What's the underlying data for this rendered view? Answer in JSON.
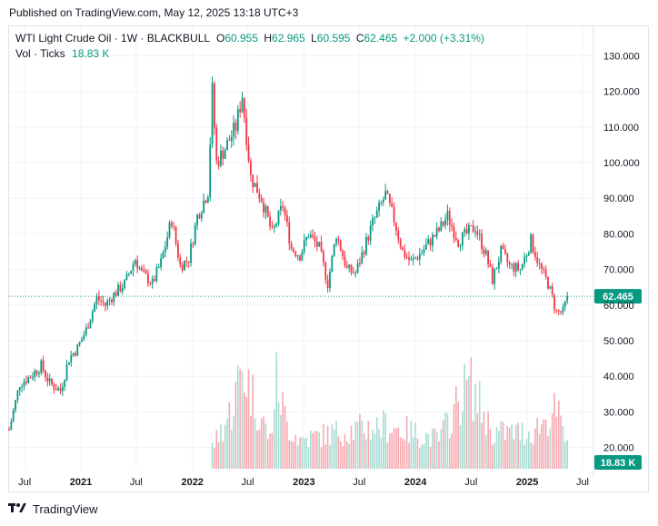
{
  "header": {
    "published": "Published on TradingView.com, May 12, 2025 13:18 UTC+3"
  },
  "legend": {
    "symbol": "WTI Light Crude Oil · 1W · BLACKBULL",
    "o_label": "O",
    "o": "60.955",
    "h_label": "H",
    "h": "62.965",
    "l_label": "L",
    "l": "60.595",
    "c_label": "C",
    "c": "62.465",
    "change": "+2.000 (+3.31%)",
    "vol_label": "Vol · Ticks",
    "vol": "18.83 K"
  },
  "footer": {
    "brand": "TradingView"
  },
  "colors": {
    "up": "#089981",
    "down": "#f23645",
    "up_vol": "#a8dcd2",
    "down_vol": "#f7a9b0",
    "grid": "#f0f3fa",
    "axis_text": "#131722"
  },
  "chart_data": {
    "type": "candlestick",
    "title": "WTI Light Crude Oil · 1W · BLACKBULL",
    "y_ticks": [
      "130.000",
      "120.000",
      "110.000",
      "100.000",
      "90.000",
      "80.000",
      "70.000",
      "60.000",
      "50.000",
      "40.000",
      "30.000",
      "20.000"
    ],
    "ylim": [
      18,
      134
    ],
    "x_ticks": [
      "Jul",
      "2021",
      "Jul",
      "2022",
      "Jul",
      "2023",
      "Jul",
      "2024",
      "Jul",
      "2025",
      "Jul"
    ],
    "last_price": "62.465",
    "volume_label": "18.83 K",
    "grid": true,
    "close_path": [
      [
        "2020-05-11",
        25
      ],
      [
        "2020-06-15",
        38
      ],
      [
        "2020-07-20",
        40
      ],
      [
        "2020-08-24",
        43
      ],
      [
        "2020-09-21",
        38
      ],
      [
        "2020-10-26",
        36
      ],
      [
        "2020-11-23",
        45
      ],
      [
        "2020-12-21",
        48
      ],
      [
        "2021-01-18",
        53
      ],
      [
        "2021-02-22",
        62
      ],
      [
        "2021-03-22",
        60
      ],
      [
        "2021-04-19",
        63
      ],
      [
        "2021-05-24",
        66
      ],
      [
        "2021-06-28",
        73
      ],
      [
        "2021-07-19",
        69
      ],
      [
        "2021-08-23",
        66
      ],
      [
        "2021-09-20",
        72
      ],
      [
        "2021-10-25",
        84
      ],
      [
        "2021-11-22",
        71
      ],
      [
        "2021-12-20",
        73
      ],
      [
        "2022-01-17",
        85
      ],
      [
        "2022-02-21",
        92
      ],
      [
        "2022-03-07",
        120
      ],
      [
        "2022-03-21",
        100
      ],
      [
        "2022-04-18",
        104
      ],
      [
        "2022-05-23",
        110
      ],
      [
        "2022-06-13",
        119
      ],
      [
        "2022-07-11",
        96
      ],
      [
        "2022-08-15",
        90
      ],
      [
        "2022-09-19",
        80
      ],
      [
        "2022-10-24",
        88
      ],
      [
        "2022-11-21",
        76
      ],
      [
        "2022-12-19",
        74
      ],
      [
        "2023-01-16",
        80
      ],
      [
        "2023-02-20",
        76
      ],
      [
        "2023-03-20",
        66
      ],
      [
        "2023-04-17",
        80
      ],
      [
        "2023-05-22",
        70
      ],
      [
        "2023-06-19",
        69
      ],
      [
        "2023-07-17",
        76
      ],
      [
        "2023-08-14",
        83
      ],
      [
        "2023-09-25",
        91
      ],
      [
        "2023-10-23",
        84
      ],
      [
        "2023-11-20",
        75
      ],
      [
        "2023-12-18",
        72
      ],
      [
        "2024-01-22",
        75
      ],
      [
        "2024-02-19",
        78
      ],
      [
        "2024-03-18",
        81
      ],
      [
        "2024-04-15",
        85
      ],
      [
        "2024-05-20",
        78
      ],
      [
        "2024-06-17",
        80
      ],
      [
        "2024-07-15",
        82
      ],
      [
        "2024-08-19",
        74
      ],
      [
        "2024-09-09",
        67
      ],
      [
        "2024-10-07",
        75
      ],
      [
        "2024-11-04",
        71
      ],
      [
        "2024-12-09",
        70
      ],
      [
        "2025-01-13",
        78
      ],
      [
        "2025-02-10",
        71
      ],
      [
        "2025-03-10",
        66
      ],
      [
        "2025-04-07",
        58
      ],
      [
        "2025-04-28",
        58
      ],
      [
        "2025-05-12",
        62.465
      ]
    ],
    "volume_path": [
      [
        "2020-05-11",
        0
      ],
      [
        "2022-02-28",
        0
      ],
      [
        "2022-03-07",
        3
      ],
      [
        "2022-05-09",
        8
      ],
      [
        "2022-06-13",
        14
      ],
      [
        "2022-07-18",
        10
      ],
      [
        "2022-09-12",
        4
      ],
      [
        "2022-10-03",
        12
      ],
      [
        "2022-11-07",
        6
      ],
      [
        "2022-12-19",
        4
      ],
      [
        "2023-04-17",
        5
      ],
      [
        "2023-09-25",
        6
      ],
      [
        "2024-03-18",
        4
      ],
      [
        "2024-06-24",
        12
      ],
      [
        "2024-09-09",
        5
      ],
      [
        "2025-01-13",
        5
      ],
      [
        "2025-04-07",
        8
      ],
      [
        "2025-05-12",
        3
      ]
    ]
  }
}
